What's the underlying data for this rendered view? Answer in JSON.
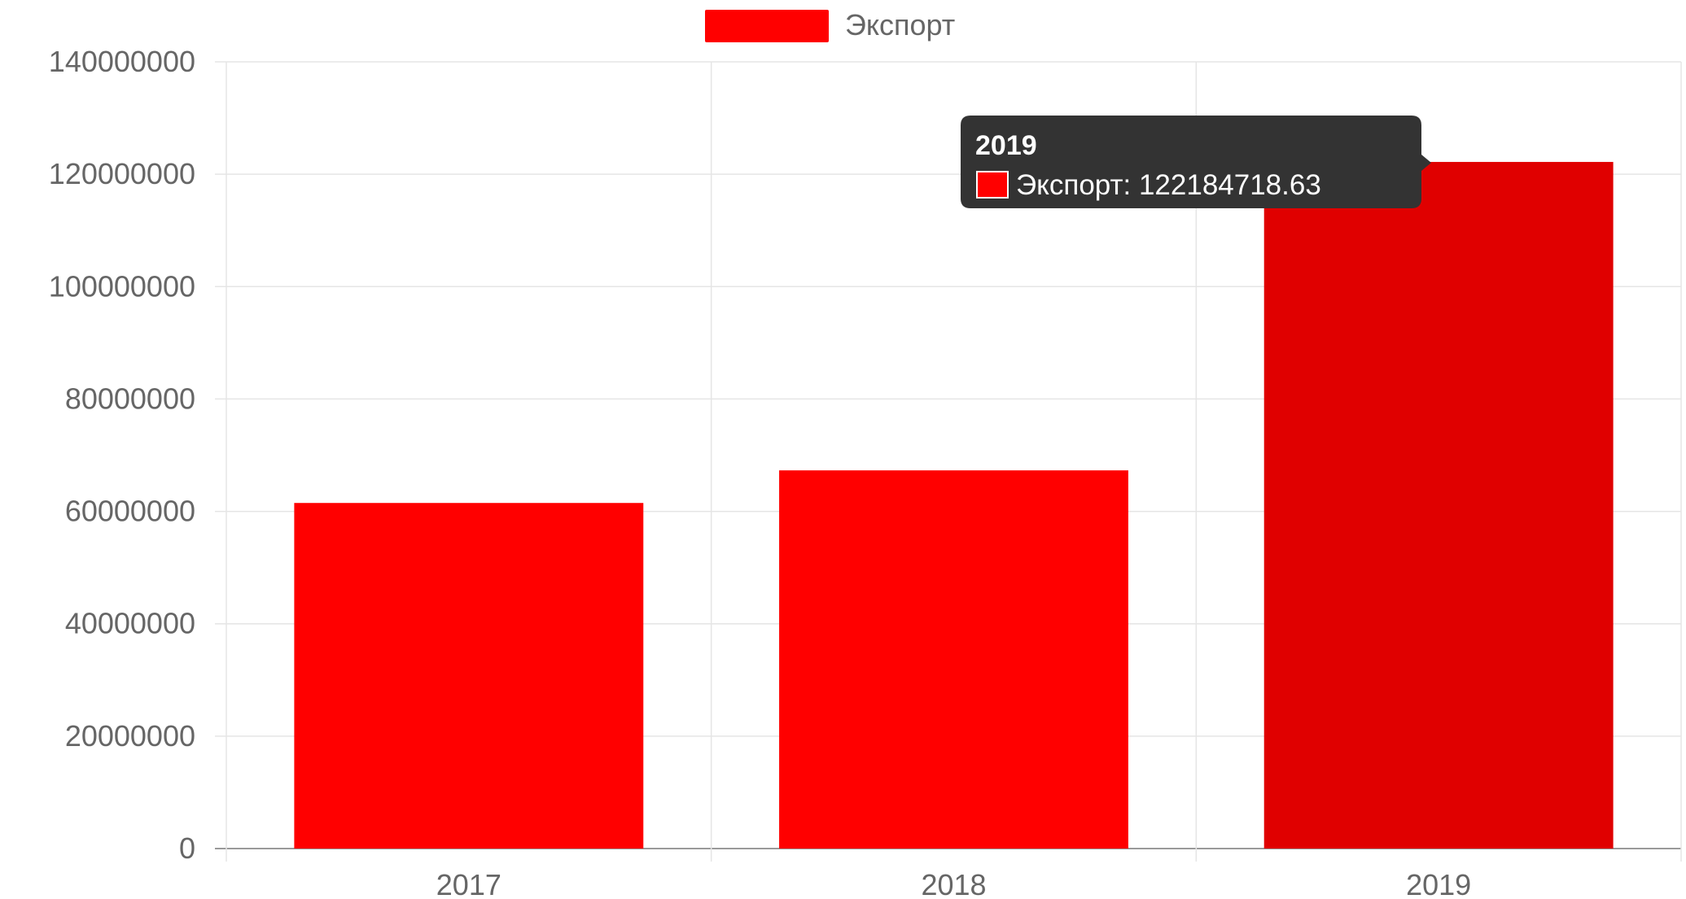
{
  "legend": {
    "label": "Экспорт",
    "color": "#ff0000"
  },
  "tooltip": {
    "title": "2019",
    "body": "Экспорт: 122184718.63",
    "background": "#333333",
    "swatch_color": "#ff0000"
  },
  "colors": {
    "bar": "#ff0000",
    "bar_hover": "#e00000",
    "grid": "#e5e5e5",
    "axis_text": "#666666"
  },
  "chart_data": {
    "type": "bar",
    "categories": [
      "2017",
      "2018",
      "2019"
    ],
    "series": [
      {
        "name": "Экспорт",
        "values": [
          61500000,
          67300000,
          122184718.63
        ]
      }
    ],
    "ylim": [
      0,
      140000000
    ],
    "yticks": [
      0,
      20000000,
      40000000,
      60000000,
      80000000,
      100000000,
      120000000,
      140000000
    ],
    "grid": true,
    "legend_position": "top-center",
    "hovered_index": 2
  }
}
